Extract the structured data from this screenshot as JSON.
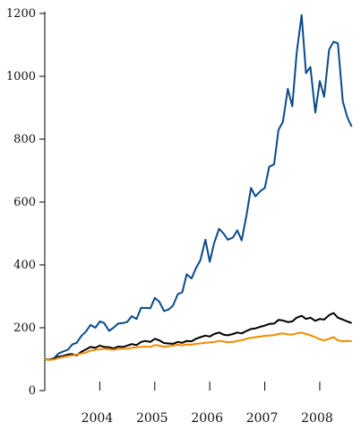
{
  "chart_data": {
    "type": "line",
    "title": "",
    "xlabel": "",
    "ylabel": "",
    "ylim": [
      0,
      1200
    ],
    "xlim": [
      2003.0,
      2008.75
    ],
    "yticks": [
      0,
      200,
      400,
      600,
      800,
      1000,
      1200
    ],
    "xtick_labels": [
      {
        "label": "2004",
        "at": 2004.0
      },
      {
        "label": "2005",
        "at": 2005.0
      },
      {
        "label": "2006",
        "at": 2006.0
      },
      {
        "label": "2007",
        "at": 2007.0
      },
      {
        "label": "2008",
        "at": 2008.0
      }
    ],
    "grid": false,
    "legend": "none",
    "x_unit": "year",
    "series": [
      {
        "color": "#0a4a8a",
        "points": [
          [
            2003.0,
            100
          ],
          [
            2003.08,
            99
          ],
          [
            2003.17,
            103
          ],
          [
            2003.25,
            118
          ],
          [
            2003.33,
            124
          ],
          [
            2003.42,
            130
          ],
          [
            2003.5,
            147
          ],
          [
            2003.58,
            152
          ],
          [
            2003.67,
            175
          ],
          [
            2003.75,
            188
          ],
          [
            2003.83,
            209
          ],
          [
            2003.92,
            200
          ],
          [
            2004.0,
            220
          ],
          [
            2004.08,
            215
          ],
          [
            2004.17,
            190
          ],
          [
            2004.25,
            200
          ],
          [
            2004.33,
            213
          ],
          [
            2004.42,
            215
          ],
          [
            2004.5,
            219
          ],
          [
            2004.58,
            237
          ],
          [
            2004.67,
            228
          ],
          [
            2004.75,
            263
          ],
          [
            2004.83,
            263
          ],
          [
            2004.92,
            262
          ],
          [
            2005.0,
            295
          ],
          [
            2005.08,
            283
          ],
          [
            2005.17,
            253
          ],
          [
            2005.25,
            258
          ],
          [
            2005.33,
            270
          ],
          [
            2005.42,
            307
          ],
          [
            2005.5,
            313
          ],
          [
            2005.58,
            370
          ],
          [
            2005.67,
            357
          ],
          [
            2005.75,
            390
          ],
          [
            2005.83,
            415
          ],
          [
            2005.92,
            480
          ],
          [
            2006.0,
            410
          ],
          [
            2006.08,
            470
          ],
          [
            2006.17,
            515
          ],
          [
            2006.25,
            500
          ],
          [
            2006.33,
            480
          ],
          [
            2006.42,
            487
          ],
          [
            2006.5,
            510
          ],
          [
            2006.58,
            478
          ],
          [
            2006.67,
            560
          ],
          [
            2006.75,
            645
          ],
          [
            2006.83,
            618
          ],
          [
            2006.92,
            635
          ],
          [
            2007.0,
            645
          ],
          [
            2007.08,
            712
          ],
          [
            2007.17,
            720
          ],
          [
            2007.25,
            830
          ],
          [
            2007.33,
            855
          ],
          [
            2007.42,
            960
          ],
          [
            2007.5,
            905
          ],
          [
            2007.58,
            1075
          ],
          [
            2007.67,
            1195
          ],
          [
            2007.75,
            1010
          ],
          [
            2007.83,
            1030
          ],
          [
            2007.92,
            885
          ],
          [
            2008.0,
            985
          ],
          [
            2008.08,
            935
          ],
          [
            2008.17,
            1085
          ],
          [
            2008.25,
            1110
          ],
          [
            2008.33,
            1105
          ],
          [
            2008.42,
            920
          ],
          [
            2008.5,
            870
          ],
          [
            2008.58,
            840
          ]
        ]
      },
      {
        "color": "#000000",
        "points": [
          [
            2003.0,
            100
          ],
          [
            2003.08,
            98
          ],
          [
            2003.17,
            101
          ],
          [
            2003.25,
            108
          ],
          [
            2003.33,
            110
          ],
          [
            2003.42,
            115
          ],
          [
            2003.5,
            116
          ],
          [
            2003.58,
            112
          ],
          [
            2003.67,
            124
          ],
          [
            2003.75,
            131
          ],
          [
            2003.83,
            139
          ],
          [
            2003.92,
            136
          ],
          [
            2004.0,
            143
          ],
          [
            2004.08,
            139
          ],
          [
            2004.17,
            138
          ],
          [
            2004.25,
            134
          ],
          [
            2004.33,
            140
          ],
          [
            2004.42,
            139
          ],
          [
            2004.5,
            143
          ],
          [
            2004.58,
            148
          ],
          [
            2004.67,
            145
          ],
          [
            2004.75,
            155
          ],
          [
            2004.83,
            158
          ],
          [
            2004.92,
            155
          ],
          [
            2005.0,
            165
          ],
          [
            2005.08,
            160
          ],
          [
            2005.17,
            151
          ],
          [
            2005.25,
            150
          ],
          [
            2005.33,
            149
          ],
          [
            2005.42,
            155
          ],
          [
            2005.5,
            152
          ],
          [
            2005.58,
            158
          ],
          [
            2005.67,
            157
          ],
          [
            2005.75,
            165
          ],
          [
            2005.83,
            170
          ],
          [
            2005.92,
            175
          ],
          [
            2006.0,
            172
          ],
          [
            2006.08,
            180
          ],
          [
            2006.17,
            185
          ],
          [
            2006.25,
            178
          ],
          [
            2006.33,
            176
          ],
          [
            2006.42,
            180
          ],
          [
            2006.5,
            185
          ],
          [
            2006.58,
            182
          ],
          [
            2006.67,
            190
          ],
          [
            2006.75,
            196
          ],
          [
            2006.83,
            198
          ],
          [
            2006.92,
            203
          ],
          [
            2007.0,
            207
          ],
          [
            2007.08,
            212
          ],
          [
            2007.17,
            213
          ],
          [
            2007.25,
            225
          ],
          [
            2007.33,
            223
          ],
          [
            2007.42,
            218
          ],
          [
            2007.5,
            220
          ],
          [
            2007.58,
            232
          ],
          [
            2007.67,
            238
          ],
          [
            2007.75,
            228
          ],
          [
            2007.83,
            232
          ],
          [
            2007.92,
            222
          ],
          [
            2008.0,
            228
          ],
          [
            2008.08,
            226
          ],
          [
            2008.17,
            240
          ],
          [
            2008.25,
            247
          ],
          [
            2008.33,
            232
          ],
          [
            2008.42,
            226
          ],
          [
            2008.5,
            220
          ],
          [
            2008.58,
            215
          ]
        ]
      },
      {
        "color": "#f08c00",
        "points": [
          [
            2003.0,
            100
          ],
          [
            2003.08,
            98
          ],
          [
            2003.17,
            99
          ],
          [
            2003.25,
            104
          ],
          [
            2003.33,
            107
          ],
          [
            2003.42,
            110
          ],
          [
            2003.5,
            112
          ],
          [
            2003.58,
            115
          ],
          [
            2003.67,
            118
          ],
          [
            2003.75,
            121
          ],
          [
            2003.83,
            127
          ],
          [
            2003.92,
            130
          ],
          [
            2004.0,
            131
          ],
          [
            2004.08,
            133
          ],
          [
            2004.17,
            131
          ],
          [
            2004.25,
            130
          ],
          [
            2004.33,
            132
          ],
          [
            2004.42,
            134
          ],
          [
            2004.5,
            133
          ],
          [
            2004.58,
            136
          ],
          [
            2004.67,
            138
          ],
          [
            2004.75,
            139
          ],
          [
            2004.83,
            140
          ],
          [
            2004.92,
            139
          ],
          [
            2005.0,
            145
          ],
          [
            2005.08,
            143
          ],
          [
            2005.17,
            139
          ],
          [
            2005.25,
            141
          ],
          [
            2005.33,
            143
          ],
          [
            2005.42,
            146
          ],
          [
            2005.5,
            144
          ],
          [
            2005.58,
            147
          ],
          [
            2005.67,
            146
          ],
          [
            2005.75,
            149
          ],
          [
            2005.83,
            150
          ],
          [
            2005.92,
            152
          ],
          [
            2006.0,
            153
          ],
          [
            2006.08,
            155
          ],
          [
            2006.17,
            158
          ],
          [
            2006.25,
            156
          ],
          [
            2006.33,
            154
          ],
          [
            2006.42,
            155
          ],
          [
            2006.5,
            158
          ],
          [
            2006.58,
            160
          ],
          [
            2006.67,
            165
          ],
          [
            2006.75,
            168
          ],
          [
            2006.83,
            170
          ],
          [
            2006.92,
            172
          ],
          [
            2007.0,
            174
          ],
          [
            2007.08,
            175
          ],
          [
            2007.17,
            177
          ],
          [
            2007.25,
            180
          ],
          [
            2007.33,
            182
          ],
          [
            2007.42,
            179
          ],
          [
            2007.5,
            178
          ],
          [
            2007.58,
            182
          ],
          [
            2007.67,
            185
          ],
          [
            2007.75,
            180
          ],
          [
            2007.83,
            176
          ],
          [
            2007.92,
            170
          ],
          [
            2008.0,
            163
          ],
          [
            2008.08,
            160
          ],
          [
            2008.17,
            165
          ],
          [
            2008.25,
            170
          ],
          [
            2008.33,
            160
          ],
          [
            2008.42,
            157
          ],
          [
            2008.5,
            158
          ],
          [
            2008.58,
            157
          ]
        ]
      }
    ]
  }
}
